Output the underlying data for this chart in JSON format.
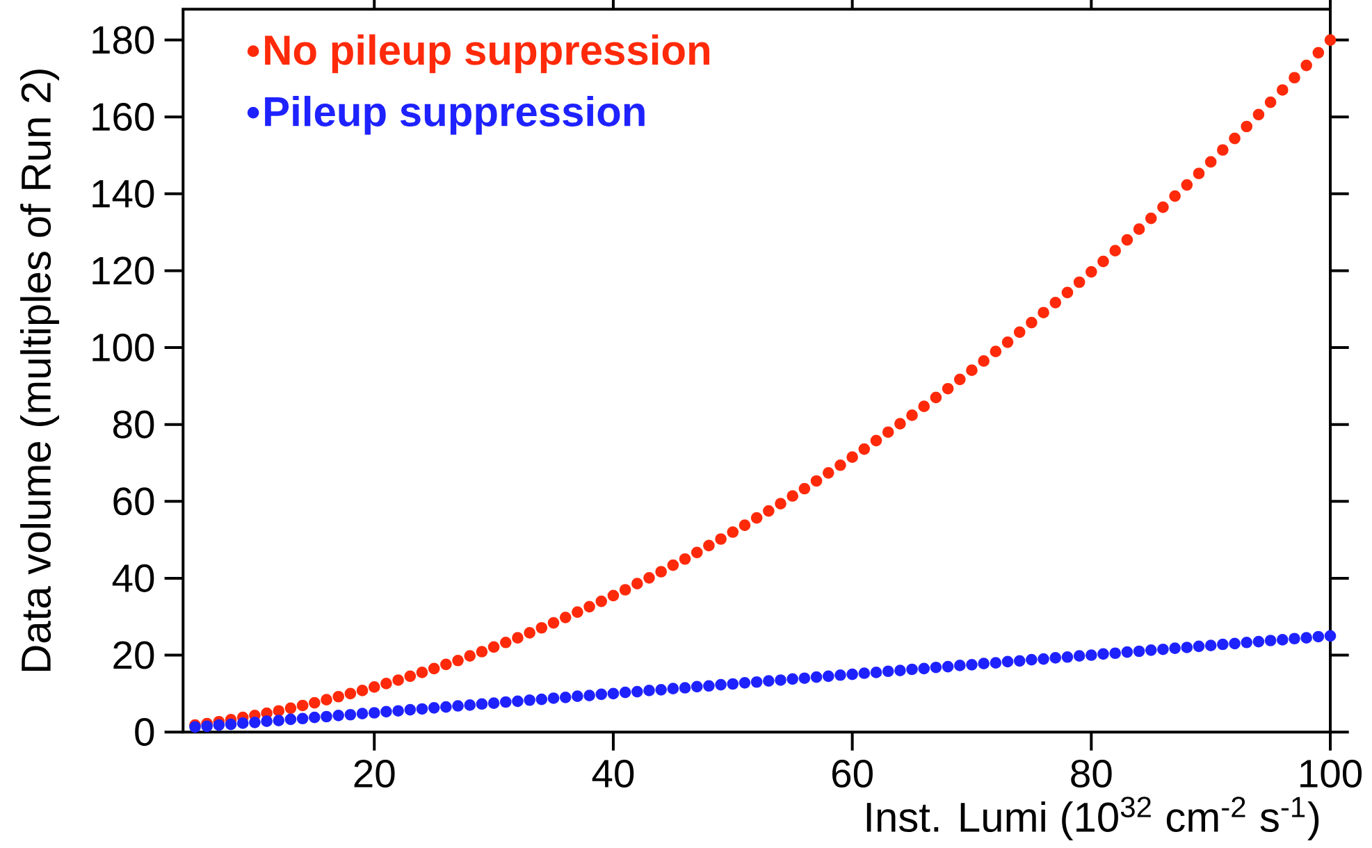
{
  "chart_data": {
    "type": "scatter",
    "xlabel": "Inst. Lumi (10$^{32}$ cm$^{-2}$ s$^{-1}$)",
    "ylabel": "Data volume (multiples of Run 2)",
    "x": [
      5,
      6,
      7,
      8,
      9,
      10,
      11,
      12,
      13,
      14,
      15,
      16,
      17,
      18,
      19,
      20,
      21,
      22,
      23,
      24,
      25,
      26,
      27,
      28,
      29,
      30,
      31,
      32,
      33,
      34,
      35,
      36,
      37,
      38,
      39,
      40,
      41,
      42,
      43,
      44,
      45,
      46,
      47,
      48,
      49,
      50,
      51,
      52,
      53,
      54,
      55,
      56,
      57,
      58,
      59,
      60,
      61,
      62,
      63,
      64,
      65,
      66,
      67,
      68,
      69,
      70,
      71,
      72,
      73,
      74,
      75,
      76,
      77,
      78,
      79,
      80,
      81,
      82,
      83,
      84,
      85,
      86,
      87,
      88,
      89,
      90,
      91,
      92,
      93,
      94,
      95,
      96,
      97,
      98,
      99,
      100
    ],
    "series": [
      {
        "name": "No pileup suppression",
        "color": "#ff2a0a",
        "values": [
          1.8,
          2.2,
          2.7,
          3.2,
          3.8,
          4.3,
          4.9,
          5.5,
          6.2,
          6.9,
          7.6,
          8.4,
          9.2,
          10.0,
          10.8,
          11.7,
          12.6,
          13.5,
          14.5,
          15.5,
          16.5,
          17.6,
          18.6,
          19.8,
          20.9,
          22.1,
          23.3,
          24.5,
          25.8,
          27.1,
          28.4,
          29.8,
          31.2,
          32.6,
          34.0,
          35.5,
          37.0,
          38.6,
          40.1,
          41.7,
          43.4,
          45.0,
          46.7,
          48.5,
          50.2,
          52.0,
          53.8,
          55.7,
          57.5,
          59.4,
          61.4,
          63.3,
          65.3,
          67.4,
          69.4,
          71.5,
          73.6,
          75.8,
          78.0,
          80.2,
          82.4,
          84.7,
          87.0,
          89.3,
          91.7,
          94.1,
          96.5,
          99.0,
          101.4,
          104.0,
          106.5,
          109.1,
          111.7,
          114.3,
          117.0,
          119.7,
          122.4,
          125.2,
          128.0,
          130.8,
          133.6,
          136.5,
          139.4,
          142.3,
          145.3,
          148.3,
          151.4,
          154.4,
          157.5,
          160.6,
          163.8,
          167.0,
          170.2,
          173.4,
          176.7,
          180.0
        ]
      },
      {
        "name": "Pileup suppression",
        "color": "#1e22ff",
        "values": [
          1.3,
          1.5,
          1.8,
          2,
          2.3,
          2.5,
          2.8,
          3,
          3.3,
          3.5,
          3.8,
          4,
          4.3,
          4.5,
          4.8,
          5,
          5.3,
          5.5,
          5.8,
          6,
          6.3,
          6.5,
          6.8,
          7,
          7.3,
          7.5,
          7.8,
          8,
          8.3,
          8.5,
          8.8,
          9,
          9.3,
          9.5,
          9.8,
          10,
          10.3,
          10.5,
          10.8,
          11,
          11.3,
          11.5,
          11.8,
          12,
          12.3,
          12.5,
          12.8,
          13,
          13.3,
          13.5,
          13.8,
          14,
          14.3,
          14.5,
          14.8,
          15,
          15.3,
          15.5,
          15.8,
          16,
          16.3,
          16.5,
          16.8,
          17,
          17.3,
          17.5,
          17.8,
          18,
          18.3,
          18.5,
          18.8,
          19,
          19.3,
          19.5,
          19.8,
          20,
          20.3,
          20.5,
          20.8,
          21,
          21.3,
          21.5,
          21.8,
          22,
          22.3,
          22.5,
          22.8,
          23,
          23.3,
          23.5,
          23.8,
          24,
          24.3,
          24.5,
          24.8,
          25
        ]
      }
    ],
    "xlim": [
      4,
      100
    ],
    "ylim": [
      0,
      188
    ],
    "xticks": [
      20,
      40,
      60,
      80,
      100
    ],
    "yticks": [
      0,
      20,
      40,
      60,
      80,
      100,
      120,
      140,
      160,
      180
    ],
    "marker": "circle",
    "legend": "top left"
  }
}
